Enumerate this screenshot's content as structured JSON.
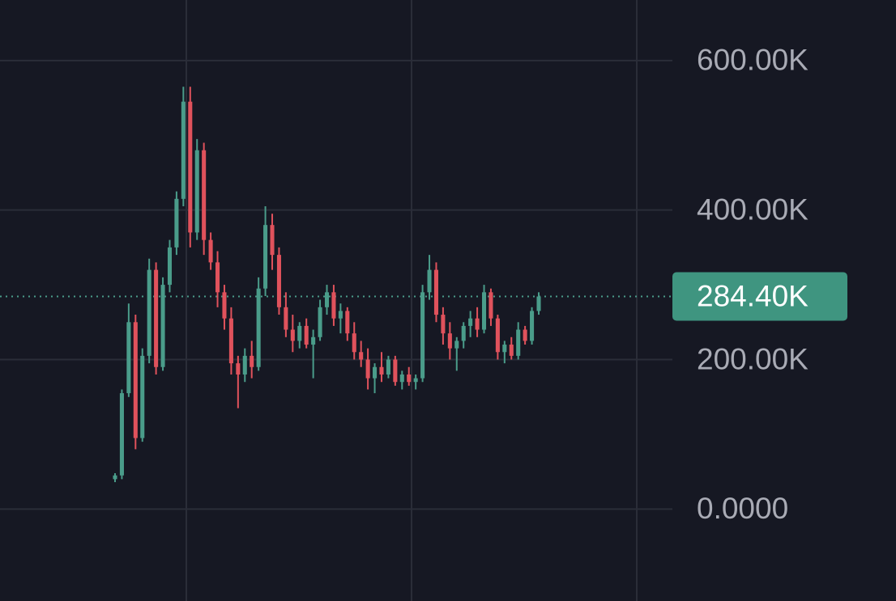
{
  "chart_data": {
    "type": "candlestick",
    "ylim": [
      -123000,
      681000
    ],
    "yticks": [
      {
        "value": 600000,
        "label": "600.00K"
      },
      {
        "value": 400000,
        "label": "400.00K"
      },
      {
        "value": 200000,
        "label": "200.00K"
      },
      {
        "value": 0,
        "label": "0.0000"
      }
    ],
    "grid": true,
    "up_color": "#4a9c8a",
    "down_color": "#e0525c",
    "last_price": {
      "value": 284400,
      "label": "284.40K"
    },
    "open": [
      40000,
      45000,
      155000,
      250000,
      95000,
      205000,
      320000,
      190000,
      300000,
      350000,
      415000,
      545000,
      370000,
      480000,
      360000,
      330000,
      290000,
      255000,
      195000,
      180000,
      205000,
      190000,
      295000,
      380000,
      340000,
      270000,
      240000,
      225000,
      245000,
      220000,
      230000,
      270000,
      290000,
      255000,
      265000,
      235000,
      210000,
      200000,
      175000,
      190000,
      180000,
      200000,
      170000,
      180000,
      170000,
      175000,
      290000,
      320000,
      260000,
      235000,
      215000,
      225000,
      245000,
      255000,
      240000,
      290000,
      255000,
      210000,
      220000,
      205000,
      240000,
      225000,
      265000
    ],
    "high": [
      48000,
      160000,
      275000,
      260000,
      215000,
      335000,
      330000,
      310000,
      360000,
      425000,
      565000,
      565000,
      495000,
      490000,
      370000,
      345000,
      300000,
      270000,
      205000,
      215000,
      225000,
      310000,
      405000,
      395000,
      350000,
      290000,
      260000,
      250000,
      255000,
      240000,
      280000,
      300000,
      300000,
      275000,
      270000,
      250000,
      225000,
      215000,
      195000,
      210000,
      205000,
      205000,
      185000,
      190000,
      180000,
      300000,
      340000,
      330000,
      270000,
      250000,
      230000,
      250000,
      265000,
      270000,
      300000,
      295000,
      260000,
      225000,
      230000,
      250000,
      245000,
      270000,
      290000
    ],
    "low": [
      36000,
      40000,
      150000,
      80000,
      90000,
      195000,
      180000,
      185000,
      290000,
      340000,
      405000,
      350000,
      360000,
      340000,
      320000,
      270000,
      240000,
      180000,
      135000,
      170000,
      175000,
      185000,
      285000,
      320000,
      260000,
      230000,
      210000,
      215000,
      215000,
      175000,
      225000,
      260000,
      245000,
      235000,
      225000,
      200000,
      190000,
      160000,
      155000,
      170000,
      175000,
      165000,
      160000,
      165000,
      160000,
      170000,
      280000,
      250000,
      220000,
      200000,
      185000,
      215000,
      230000,
      230000,
      235000,
      245000,
      200000,
      195000,
      200000,
      200000,
      220000,
      220000,
      260000
    ],
    "close": [
      45000,
      155000,
      250000,
      95000,
      205000,
      320000,
      190000,
      300000,
      350000,
      415000,
      545000,
      370000,
      480000,
      360000,
      330000,
      290000,
      255000,
      195000,
      180000,
      205000,
      190000,
      295000,
      380000,
      340000,
      270000,
      240000,
      225000,
      245000,
      220000,
      230000,
      270000,
      290000,
      255000,
      265000,
      235000,
      210000,
      200000,
      175000,
      190000,
      180000,
      200000,
      170000,
      180000,
      170000,
      175000,
      290000,
      320000,
      260000,
      235000,
      215000,
      225000,
      245000,
      255000,
      240000,
      290000,
      255000,
      210000,
      220000,
      205000,
      240000,
      225000,
      265000,
      284400
    ]
  }
}
